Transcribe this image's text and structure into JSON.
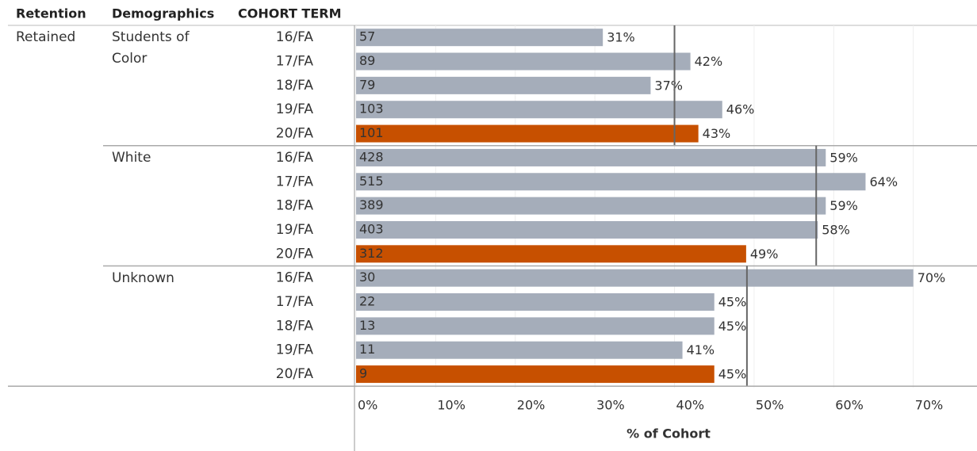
{
  "chart_data": {
    "type": "bar",
    "headers": [
      "Retention",
      "Demographics",
      "COHORT TERM"
    ],
    "retention": "Retained",
    "xlabel": "% of Cohort",
    "xlim": [
      0,
      78
    ],
    "xticks": [
      {
        "value": 0,
        "label": "0%"
      },
      {
        "value": 10,
        "label": "10%"
      },
      {
        "value": 20,
        "label": "20%"
      },
      {
        "value": 30,
        "label": "30%"
      },
      {
        "value": 40,
        "label": "40%"
      },
      {
        "value": 50,
        "label": "50%"
      },
      {
        "value": 60,
        "label": "60%"
      },
      {
        "value": 70,
        "label": "70%"
      }
    ],
    "grid": true,
    "groups": [
      {
        "name": "Students of Color",
        "categories": [
          "16/FA",
          "17/FA",
          "18/FA",
          "19/FA",
          "20/FA"
        ],
        "values": [
          31,
          42,
          37,
          46,
          43
        ],
        "value_labels": [
          "31%",
          "42%",
          "37%",
          "46%",
          "43%"
        ],
        "counts": [
          57,
          89,
          79,
          103,
          101
        ],
        "colors": [
          "#a5adba",
          "#a5adba",
          "#a5adba",
          "#a5adba",
          "#c75000"
        ],
        "reference": 40
      },
      {
        "name": "White",
        "categories": [
          "16/FA",
          "17/FA",
          "18/FA",
          "19/FA",
          "20/FA"
        ],
        "values": [
          59,
          64,
          59,
          58,
          49
        ],
        "value_labels": [
          "59%",
          "64%",
          "59%",
          "58%",
          "49%"
        ],
        "counts": [
          428,
          515,
          389,
          403,
          312
        ],
        "colors": [
          "#a5adba",
          "#a5adba",
          "#a5adba",
          "#a5adba",
          "#c75000"
        ],
        "reference": 57.8
      },
      {
        "name": "Unknown",
        "categories": [
          "16/FA",
          "17/FA",
          "18/FA",
          "19/FA",
          "20/FA"
        ],
        "values": [
          70,
          45,
          45,
          41,
          45
        ],
        "value_labels": [
          "70%",
          "45%",
          "45%",
          "41%",
          "45%"
        ],
        "counts": [
          30,
          22,
          13,
          11,
          9
        ],
        "colors": [
          "#a5adba",
          "#a5adba",
          "#a5adba",
          "#a5adba",
          "#c75000"
        ],
        "reference": 49.1
      }
    ]
  }
}
